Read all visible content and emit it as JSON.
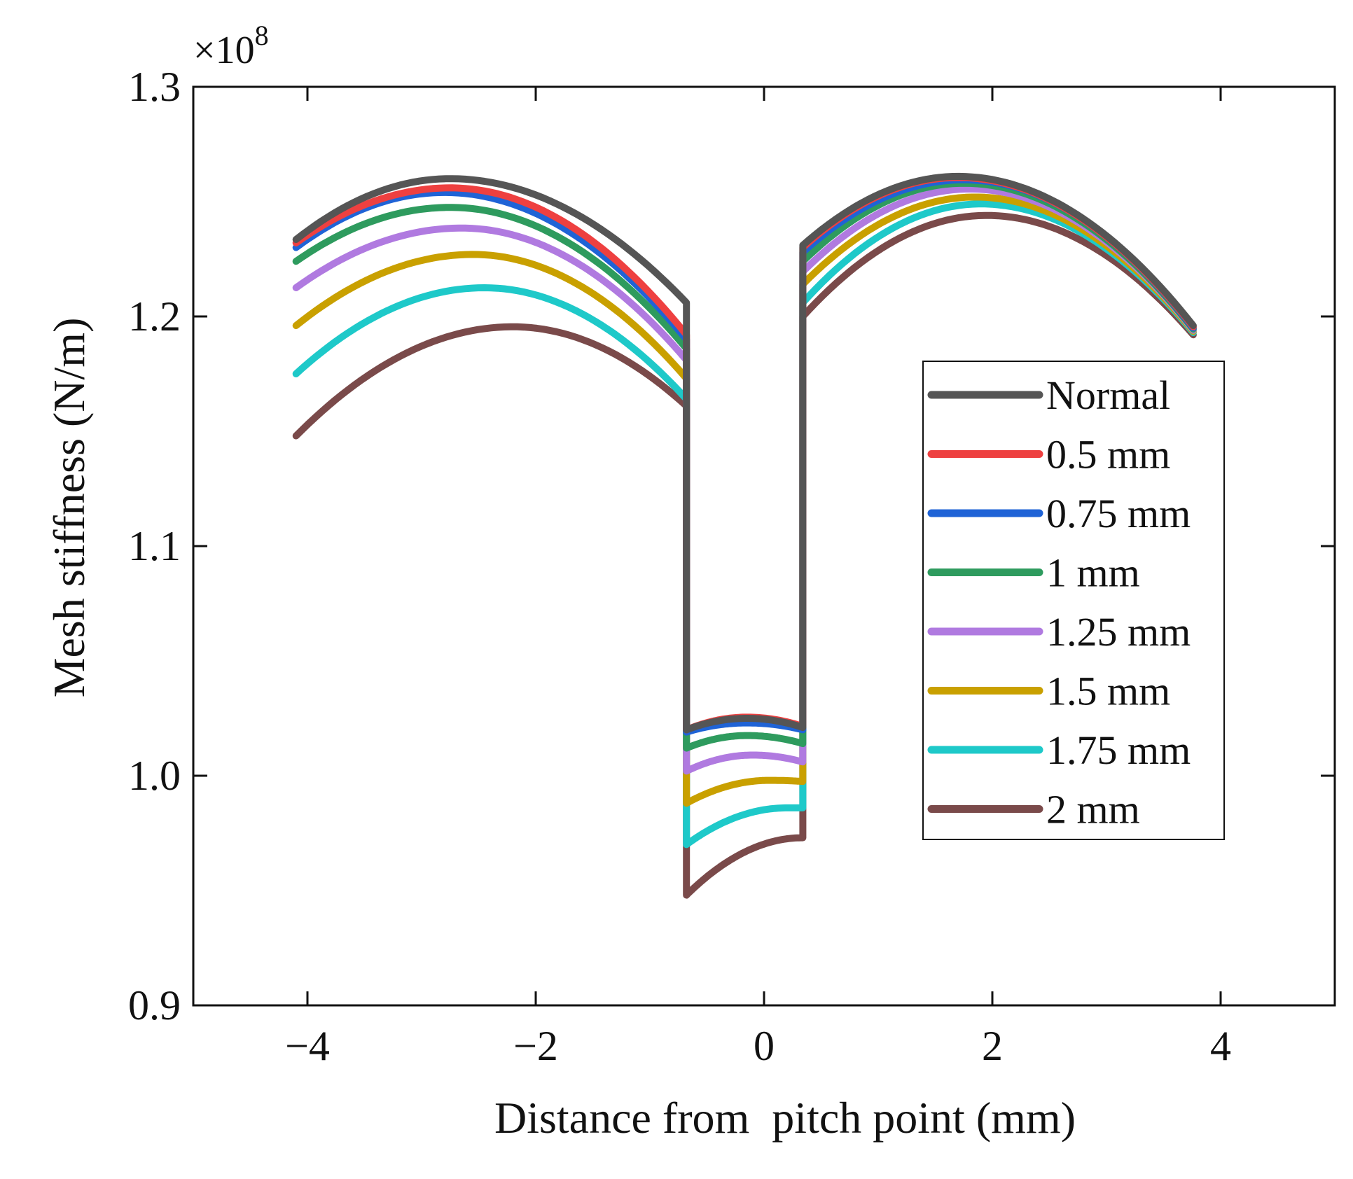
{
  "chart_data": {
    "type": "line",
    "title": "",
    "xlabel": "Distance from  pitch point (mm)",
    "ylabel": "Mesh stiffness (N/m)",
    "y_multiplier": "×10",
    "y_multiplier_exp": "8",
    "xlim": [
      -5.0,
      5.0
    ],
    "ylim": [
      0.9,
      1.3
    ],
    "xticks": [
      -4,
      -2,
      0,
      2,
      4
    ],
    "xtick_labels": [
      "−4",
      "−2",
      "0",
      "2",
      "4"
    ],
    "yticks": [
      0.9,
      1.0,
      1.1,
      1.2,
      1.3
    ],
    "ytick_labels": [
      "0.9",
      "1.0",
      "1.1",
      "1.2",
      "1.3"
    ],
    "legend_position": "right",
    "segments_x": {
      "left": [
        -4.1,
        -0.68
      ],
      "middle": [
        -0.68,
        0.34
      ],
      "right": [
        0.34,
        3.76
      ]
    },
    "series": [
      {
        "name": "Normal",
        "color": "#555555",
        "left": {
          "start": 1.2335,
          "peak_x": -2.75,
          "peak": 1.26,
          "end": 1.206
        },
        "middle": {
          "start": 1.02,
          "peak_x": -0.15,
          "peak": 1.025,
          "end": 1.021
        },
        "right": {
          "start": 1.231,
          "peak_x": 1.7,
          "peak": 1.261,
          "end": 1.196
        }
      },
      {
        "name": "0.5 mm",
        "color": "#ee4040",
        "left": {
          "start": 1.232,
          "peak_x": -2.75,
          "peak": 1.256,
          "end": 1.192
        },
        "middle": {
          "start": 1.02,
          "peak_x": -0.15,
          "peak": 1.0255,
          "end": 1.0215
        },
        "right": {
          "start": 1.23,
          "peak_x": 1.7,
          "peak": 1.2605,
          "end": 1.1955
        }
      },
      {
        "name": "0.75 mm",
        "color": "#1f63d6",
        "left": {
          "start": 1.23,
          "peak_x": -2.8,
          "peak": 1.254,
          "end": 1.19
        },
        "middle": {
          "start": 1.019,
          "peak_x": -0.15,
          "peak": 1.023,
          "end": 1.02
        },
        "right": {
          "start": 1.228,
          "peak_x": 1.75,
          "peak": 1.2595,
          "end": 1.195
        }
      },
      {
        "name": "1 mm",
        "color": "#2e9b5e",
        "left": {
          "start": 1.224,
          "peak_x": -2.75,
          "peak": 1.2475,
          "end": 1.186
        },
        "middle": {
          "start": 1.012,
          "peak_x": -0.15,
          "peak": 1.0175,
          "end": 1.014
        },
        "right": {
          "start": 1.224,
          "peak_x": 1.75,
          "peak": 1.258,
          "end": 1.1945
        }
      },
      {
        "name": "1.25 mm",
        "color": "#b07ae0",
        "left": {
          "start": 1.2125,
          "peak_x": -2.65,
          "peak": 1.2385,
          "end": 1.181
        },
        "middle": {
          "start": 1.002,
          "peak_x": -0.1,
          "peak": 1.009,
          "end": 1.006
        },
        "right": {
          "start": 1.2195,
          "peak_x": 1.8,
          "peak": 1.2555,
          "end": 1.194
        }
      },
      {
        "name": "1.5 mm",
        "color": "#c9a000",
        "left": {
          "start": 1.196,
          "peak_x": -2.55,
          "peak": 1.227,
          "end": 1.173
        },
        "middle": {
          "start": 0.988,
          "peak_x": 0.05,
          "peak": 0.998,
          "end": 0.9975
        },
        "right": {
          "start": 1.214,
          "peak_x": 1.85,
          "peak": 1.252,
          "end": 1.1935
        }
      },
      {
        "name": "1.75 mm",
        "color": "#1ec9c9",
        "left": {
          "start": 1.175,
          "peak_x": -2.45,
          "peak": 1.2125,
          "end": 1.164
        },
        "middle": {
          "start": 0.97,
          "peak_x": 0.2,
          "peak": 0.986,
          "end": 0.986
        },
        "right": {
          "start": 1.206,
          "peak_x": 1.9,
          "peak": 1.249,
          "end": 1.193
        }
      },
      {
        "name": "2 mm",
        "color": "#7a4a4a",
        "left": {
          "start": 1.148,
          "peak_x": -2.2,
          "peak": 1.1955,
          "end": 1.161
        },
        "middle": {
          "start": 0.948,
          "peak_x": 0.34,
          "peak": 0.973,
          "end": 0.973
        },
        "right": {
          "start": 1.2,
          "peak_x": 1.95,
          "peak": 1.244,
          "end": 1.192
        }
      }
    ]
  }
}
